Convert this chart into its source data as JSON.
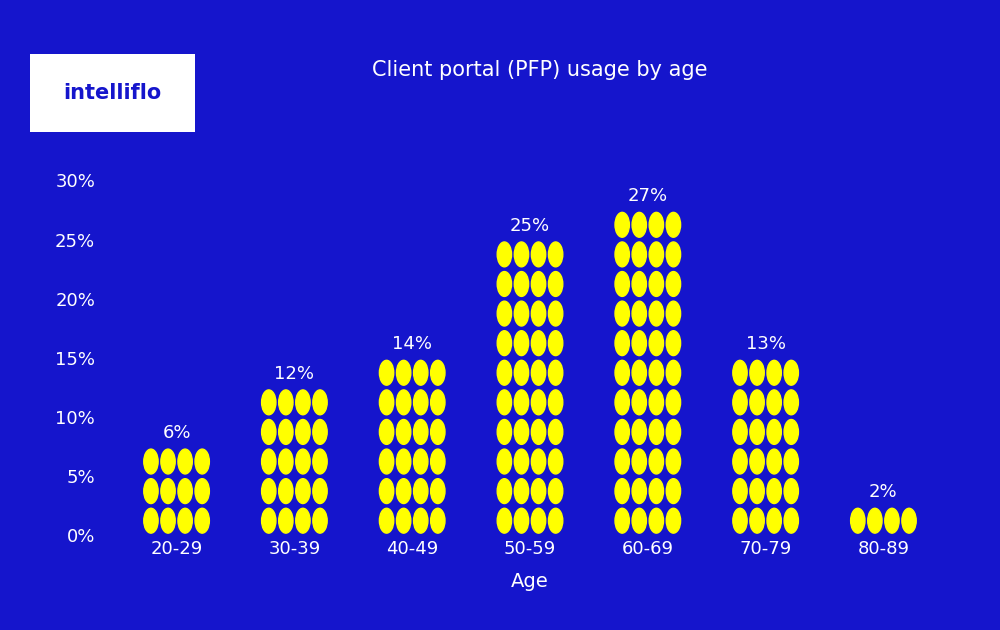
{
  "title": "Client portal (PFP) usage by age",
  "xlabel": "Age",
  "background_color": "#1515CC",
  "dot_color": "#FFFF00",
  "text_color": "#FFFFFF",
  "categories": [
    "20-29",
    "30-39",
    "40-49",
    "50-59",
    "60-69",
    "70-79",
    "80-89"
  ],
  "values": [
    6,
    12,
    14,
    25,
    27,
    13,
    2
  ],
  "value_labels": [
    "6%",
    "12%",
    "14%",
    "25%",
    "27%",
    "13%",
    "2%"
  ],
  "yticks": [
    0,
    5,
    10,
    15,
    20,
    25,
    30
  ],
  "ytick_labels": [
    "0%",
    "5%",
    "10%",
    "15%",
    "20%",
    "25%",
    "30%"
  ],
  "ylim_max": 33,
  "dot_cols": 4,
  "pct_per_row": 2.5,
  "logo_text": "intelliflo",
  "logo_bg": "#FFFFFF",
  "logo_text_color": "#1515CC",
  "bar_width": 0.58
}
